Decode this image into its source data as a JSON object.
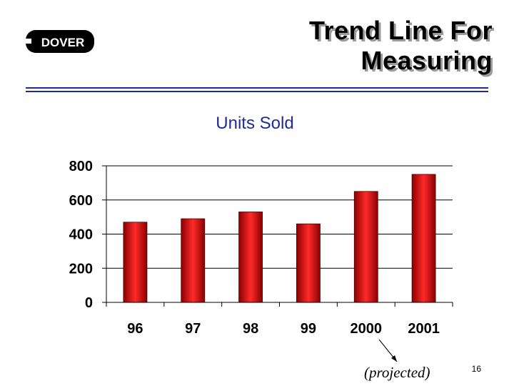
{
  "logo": {
    "text": "DOVER"
  },
  "slide": {
    "title_line1": "Trend Line For",
    "title_line2": "Measuring",
    "page_number": "16",
    "annotation": "(projected)"
  },
  "colors": {
    "bar_dark": "#8b0000",
    "bar_light": "#ff2a2a",
    "rule": "#1f2a9c",
    "chart_title": "#1f2a9c"
  },
  "chart_data": {
    "type": "bar",
    "title": "Units Sold",
    "categories": [
      "96",
      "97",
      "98",
      "99",
      "2000",
      "2001"
    ],
    "values": [
      470,
      490,
      530,
      460,
      650,
      750
    ],
    "yticks": [
      "0",
      "200",
      "400",
      "600",
      "800"
    ],
    "ylim": [
      0,
      800
    ],
    "grid": true,
    "legend": "none"
  }
}
